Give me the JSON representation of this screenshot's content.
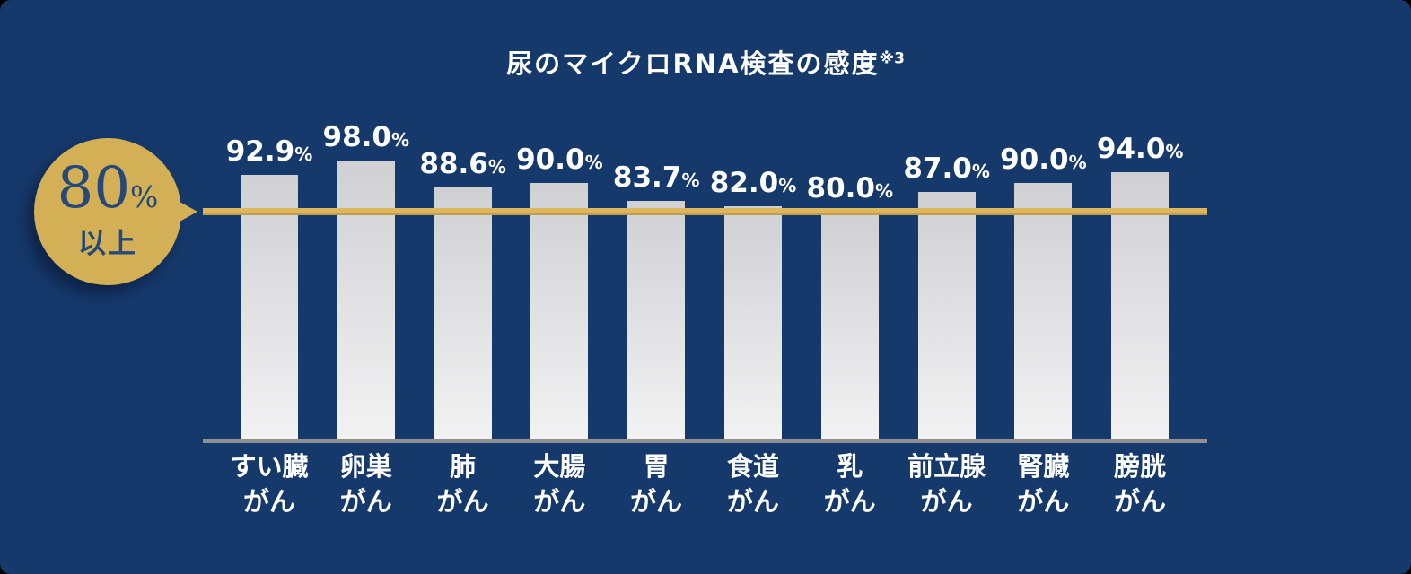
{
  "panel": {
    "title": "尿のマイクロRNA検査の感度",
    "title_superscript": "※3"
  },
  "threshold_badge": {
    "value": "80",
    "unit": "%",
    "suffix": "以上"
  },
  "chart_data": {
    "type": "bar",
    "title": "尿のマイクロRNA検査の感度※3",
    "categories": [
      "すい臓\nがん",
      "卵巣\nがん",
      "肺\nがん",
      "大腸\nがん",
      "胃\nがん",
      "食道\nがん",
      "乳\nがん",
      "前立腺\nがん",
      "腎臓\nがん",
      "膀胱\nがん"
    ],
    "values": [
      92.9,
      98.0,
      88.6,
      90.0,
      83.7,
      82.0,
      80.0,
      87.0,
      90.0,
      94.0
    ],
    "value_labels": [
      "92.9",
      "98.0",
      "88.6",
      "90.0",
      "83.7",
      "82.0",
      "80.0",
      "87.0",
      "90.0",
      "94.0"
    ],
    "unit": "%",
    "xlabel": "",
    "ylabel": "",
    "ylim": [
      0,
      100
    ],
    "grid": false,
    "legend": false,
    "threshold_line": {
      "value": 80,
      "label": "80%以上",
      "color": "#dcb75d"
    },
    "colors": {
      "background": "#16396b",
      "bar_top": "#d0d0d3",
      "bar_bottom": "#f2f2f3",
      "value_text": "#ffffff",
      "category_text": "#ffffff",
      "axis_line": "#8e9093",
      "badge_fill": "#d3b056",
      "badge_text": "#26497a"
    }
  }
}
